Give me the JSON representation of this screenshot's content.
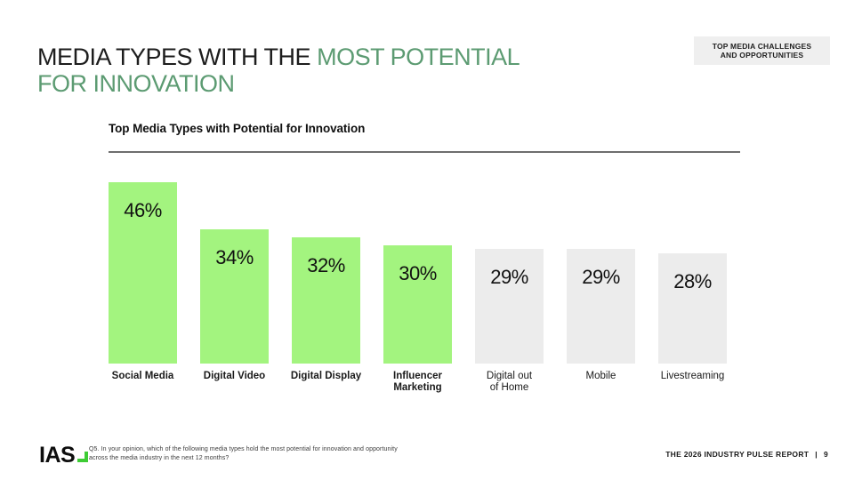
{
  "header": {
    "title_black": "MEDIA TYPES WITH THE",
    "title_green_line1": "MOST POTENTIAL",
    "title_green_line2": "FOR INNOVATION",
    "title_green_color": "#5c9b72",
    "badge": {
      "line1": "TOP MEDIA CHALLENGES",
      "line2": "AND OPPORTUNITIES"
    }
  },
  "chart_data": {
    "type": "bar",
    "title": "Top Media Types with Potential for Innovation",
    "xlabel": "",
    "ylabel": "",
    "ylim": [
      0,
      46
    ],
    "grid": false,
    "legend": false,
    "value_suffix": "%",
    "categories": [
      "Social Media",
      "Digital Video",
      "Digital Display",
      "Influencer Marketing",
      "Digital out of Home",
      "Mobile",
      "Livestreaming"
    ],
    "values": [
      46,
      34,
      32,
      30,
      29,
      29,
      28
    ],
    "bars": [
      {
        "category": "Social Media",
        "label_display": "Social Media",
        "value": 46,
        "highlighted": true
      },
      {
        "category": "Digital Video",
        "label_display": "Digital Video",
        "value": 34,
        "highlighted": true
      },
      {
        "category": "Digital Display",
        "label_display": "Digital Display",
        "value": 32,
        "highlighted": true
      },
      {
        "category": "Influencer Marketing",
        "label_display": "Influencer\nMarketing",
        "value": 30,
        "highlighted": true
      },
      {
        "category": "Digital out of Home",
        "label_display": "Digital out\nof Home",
        "value": 29,
        "highlighted": false
      },
      {
        "category": "Mobile",
        "label_display": "Mobile",
        "value": 29,
        "highlighted": false
      },
      {
        "category": "Livestreaming",
        "label_display": "Livestreaming",
        "value": 28,
        "highlighted": false
      }
    ],
    "colors": {
      "highlight_bar": "#a3f47f",
      "muted_bar": "#ececec",
      "value_text": "#111111"
    }
  },
  "footer": {
    "logo_text": "IAS",
    "logo_mark": "step-icon",
    "logo_mark_color": "#3ecc35",
    "footnote_line1": "Q5. In your opinion, which of the following media types hold the most potential for innovation and opportunity",
    "footnote_line2": "across the media industry in the next 12 months?",
    "report_label": "THE 2026 INDUSTRY PULSE REPORT",
    "report_separator": "|",
    "page_number": "9"
  }
}
